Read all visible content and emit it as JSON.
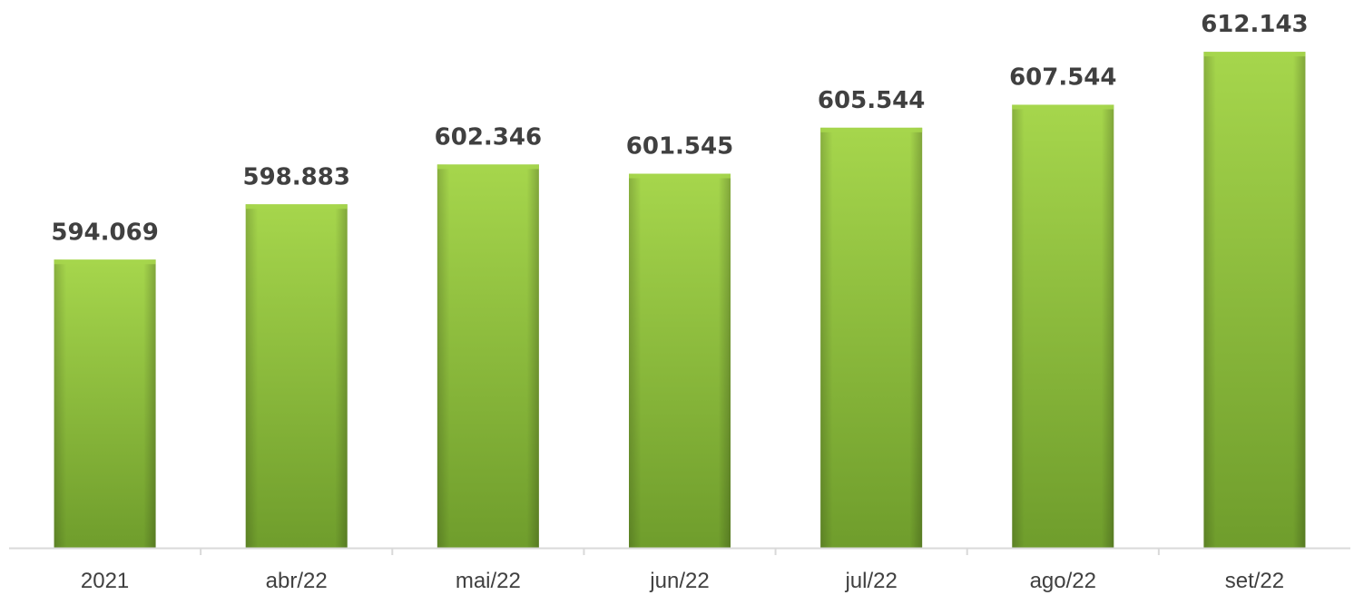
{
  "chart_data": {
    "type": "bar",
    "categories": [
      "2021",
      "abr/22",
      "mai/22",
      "jun/22",
      "jul/22",
      "ago/22",
      "set/22"
    ],
    "values": [
      594069,
      598883,
      602346,
      601545,
      605544,
      607544,
      612143
    ],
    "value_labels": [
      "594.069",
      "598.883",
      "602.346",
      "601.545",
      "605.544",
      "607.544",
      "612.143"
    ],
    "title": "",
    "xlabel": "",
    "ylabel": "",
    "ylim": [
      569000,
      613500
    ],
    "grid": false,
    "legend": "none",
    "bar_color": "#8cc63f",
    "bar_color_light": "#a6d64c",
    "bar_color_dark": "#6f9d2c",
    "axis_color": "#d9d9d9",
    "label_color": "#404040"
  }
}
